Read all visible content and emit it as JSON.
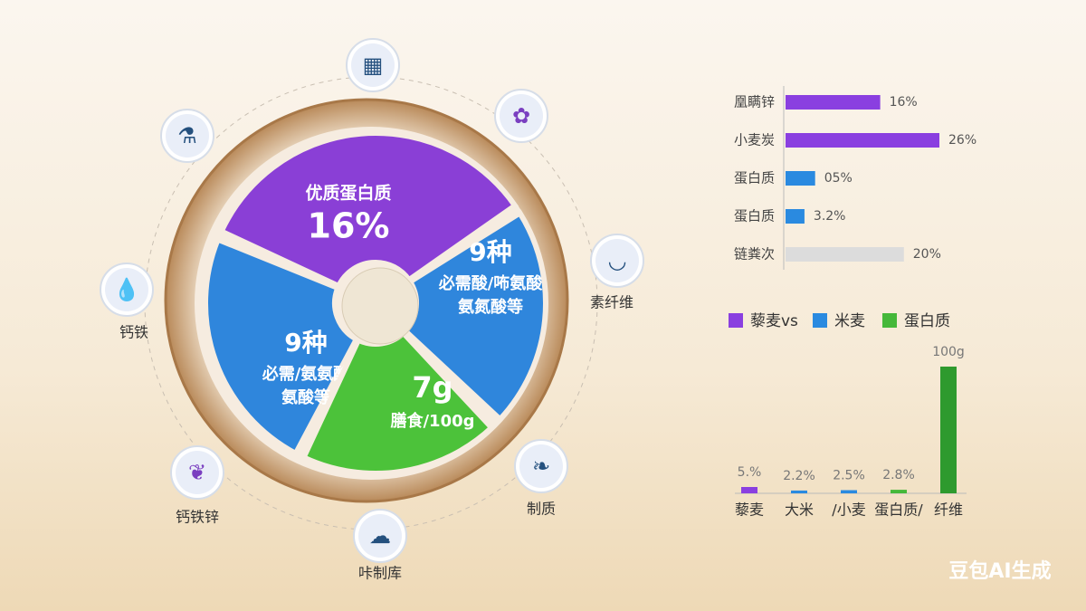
{
  "wheel": {
    "segments": [
      {
        "color": "#8a3fd6",
        "lines": [
          "优质蛋白质",
          "16%"
        ]
      },
      {
        "color": "#2f86dc",
        "lines": [
          "9种",
          "必需酸/咘氨酸",
          "氨氮酸等"
        ]
      },
      {
        "color": "#2f86dc",
        "lines": [
          "9种",
          "必需/氨氨酸",
          "氨酸等"
        ]
      },
      {
        "color": "#4cc23a",
        "lines": [
          "7g",
          "膳食/100g"
        ]
      }
    ]
  },
  "icons": [
    {
      "label": "钙铁"
    },
    {
      "label": "素纤维"
    },
    {
      "label": "钙铁锌"
    },
    {
      "label": "制质"
    },
    {
      "label": "咔制库"
    }
  ],
  "chart_data": [
    {
      "type": "hbar",
      "categories": [
        "凰瞒锌",
        "小麦炭",
        "蛋白质",
        "蛋白质",
        "链粪次"
      ],
      "values": [
        16,
        26,
        5,
        3.2,
        20
      ],
      "value_labels": [
        "16%",
        "26%",
        "05%",
        "3.2%",
        "20%"
      ],
      "colors": [
        "#8a3fe0",
        "#8a3fe0",
        "#2a8ae0",
        "#2a8ae0",
        "#dcdcdc"
      ]
    },
    {
      "type": "bar",
      "legend": [
        {
          "name": "藜麦vs",
          "color": "#8a3fe0"
        },
        {
          "name": "米麦",
          "color": "#2a8ae0"
        },
        {
          "name": "蛋白质",
          "color": "#45b83a"
        }
      ],
      "categories": [
        "藜麦",
        "大米",
        "/小麦",
        "蛋白质/",
        "纤维"
      ],
      "values": [
        5,
        2.2,
        2.5,
        2.8,
        100
      ],
      "value_labels": [
        "5.%",
        "2.2%",
        "2.5%",
        "2.8%",
        "100g"
      ],
      "colors": [
        "#8a3fe0",
        "#2a8ae0",
        "#2a8ae0",
        "#45b83a",
        "#2e9a2e"
      ]
    }
  ],
  "watermark": "豆包AI生成"
}
